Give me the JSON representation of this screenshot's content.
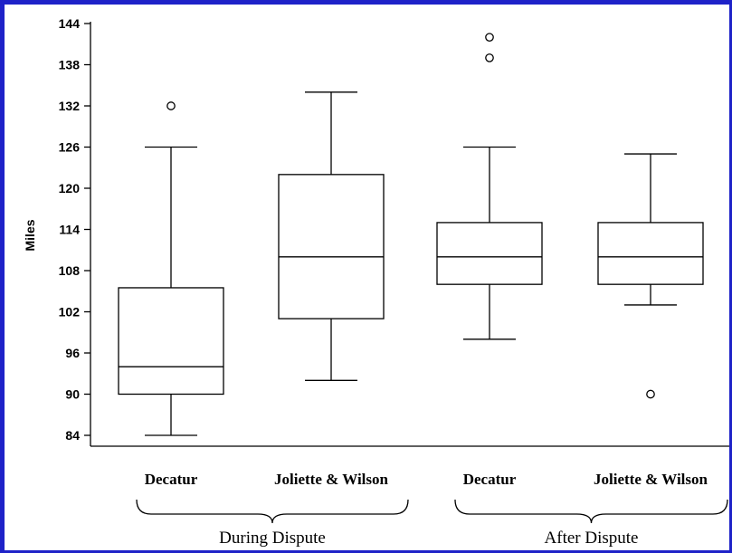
{
  "chart_data": {
    "type": "boxplot",
    "ylabel": "Miles",
    "ylim": [
      84,
      144
    ],
    "yticks": [
      84,
      90,
      96,
      102,
      108,
      114,
      120,
      126,
      132,
      138,
      144
    ],
    "grid": false,
    "categories": [
      "Decatur",
      "Joliette & Wilson",
      "Decatur",
      "Joliette & Wilson"
    ],
    "groups": [
      {
        "label": "During Dispute",
        "categories": [
          0,
          1
        ]
      },
      {
        "label": "After Dispute",
        "categories": [
          2,
          3
        ]
      }
    ],
    "boxes": [
      {
        "category": "Decatur",
        "group": "During Dispute",
        "whisker_low": 84,
        "q1": 90,
        "median": 94,
        "q3": 105.5,
        "whisker_high": 126,
        "outliers": [
          132
        ]
      },
      {
        "category": "Joliette & Wilson",
        "group": "During Dispute",
        "whisker_low": 92,
        "q1": 101,
        "median": 110,
        "q3": 122,
        "whisker_high": 134,
        "outliers": []
      },
      {
        "category": "Decatur",
        "group": "After Dispute",
        "whisker_low": 98,
        "q1": 106,
        "median": 110,
        "q3": 115,
        "whisker_high": 126,
        "outliers": [
          139,
          142
        ]
      },
      {
        "category": "Joliette & Wilson",
        "group": "After Dispute",
        "whisker_low": 103,
        "q1": 106,
        "median": 110,
        "q3": 115,
        "whisker_high": 125,
        "outliers": [
          90
        ]
      }
    ]
  }
}
